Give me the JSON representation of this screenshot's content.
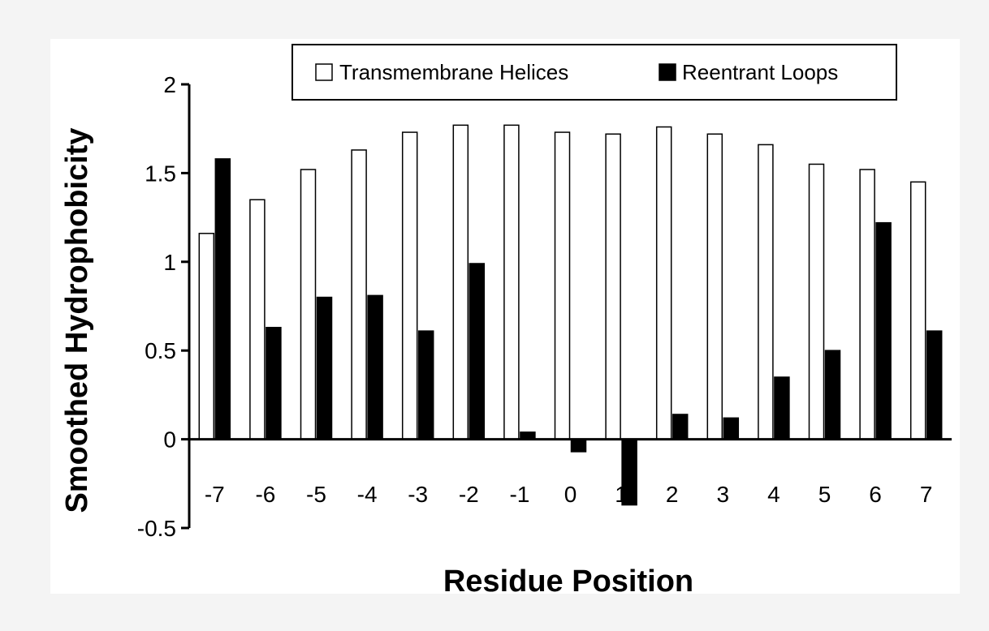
{
  "chart_data": {
    "type": "bar",
    "title": "",
    "xlabel": "Residue Position",
    "ylabel": "Smoothed Hydrophobicity",
    "ylim": [
      -0.5,
      2
    ],
    "yticks": [
      "-0.5",
      "0",
      "0.5",
      "1",
      "1.5",
      "2"
    ],
    "categories": [
      "-7",
      "-6",
      "-5",
      "-4",
      "-3",
      "-2",
      "-1",
      "0",
      "1",
      "2",
      "3",
      "4",
      "5",
      "6",
      "7"
    ],
    "series": [
      {
        "name": "Transmembrane Helices",
        "color": "#ffffff",
        "values": [
          1.16,
          1.35,
          1.52,
          1.63,
          1.73,
          1.77,
          1.77,
          1.73,
          1.72,
          1.76,
          1.72,
          1.66,
          1.55,
          1.52,
          1.45
        ]
      },
      {
        "name": "Reentrant Loops",
        "color": "#000000",
        "values": [
          1.58,
          0.63,
          0.8,
          0.81,
          0.61,
          0.99,
          0.04,
          -0.07,
          -0.37,
          0.14,
          0.12,
          0.35,
          0.5,
          1.22,
          0.61
        ]
      }
    ],
    "legend": "top-right",
    "grid": false
  }
}
